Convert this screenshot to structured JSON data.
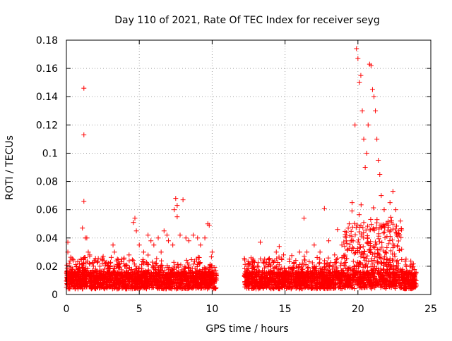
{
  "chart_data": {
    "type": "scatter",
    "title": "Day 110 of 2021, Rate Of TEC Index for receiver seyg",
    "xlabel": "GPS time / hours",
    "ylabel": "ROTI / TECUs",
    "xlim": [
      0,
      25
    ],
    "ylim": [
      0,
      0.18
    ],
    "xticks": [
      "0",
      "5",
      "10",
      "15",
      "20",
      "25"
    ],
    "yticks": [
      "0",
      "0.02",
      "0.04",
      "0.06",
      "0.08",
      "0.1",
      "0.12",
      "0.14",
      "0.16",
      "0.18"
    ],
    "grid": true,
    "legend": "none",
    "series": [
      {
        "color": "#ff0000",
        "marker": "plus",
        "points": [
          [
            0.1,
            0.037
          ],
          [
            0.1,
            0.03
          ],
          [
            0.2,
            0.022
          ],
          [
            0.3,
            0.018
          ],
          [
            0.5,
            0.015
          ],
          [
            0.7,
            0.02
          ],
          [
            0.9,
            0.022
          ],
          [
            1.0,
            0.025
          ],
          [
            1.1,
            0.047
          ],
          [
            1.2,
            0.146
          ],
          [
            1.2,
            0.113
          ],
          [
            1.2,
            0.066
          ],
          [
            1.3,
            0.04
          ],
          [
            1.4,
            0.04
          ],
          [
            1.5,
            0.03
          ],
          [
            1.6,
            0.028
          ],
          [
            1.8,
            0.022
          ],
          [
            2.0,
            0.018
          ],
          [
            2.3,
            0.02
          ],
          [
            2.6,
            0.018
          ],
          [
            3.0,
            0.022
          ],
          [
            3.2,
            0.035
          ],
          [
            3.3,
            0.03
          ],
          [
            3.5,
            0.025
          ],
          [
            3.8,
            0.025
          ],
          [
            4.0,
            0.02
          ],
          [
            4.3,
            0.028
          ],
          [
            4.6,
            0.051
          ],
          [
            4.7,
            0.054
          ],
          [
            4.8,
            0.045
          ],
          [
            5.0,
            0.035
          ],
          [
            5.3,
            0.03
          ],
          [
            5.6,
            0.042
          ],
          [
            5.8,
            0.038
          ],
          [
            6.0,
            0.035
          ],
          [
            6.3,
            0.04
          ],
          [
            6.5,
            0.03
          ],
          [
            6.7,
            0.045
          ],
          [
            6.9,
            0.042
          ],
          [
            7.0,
            0.038
          ],
          [
            7.3,
            0.035
          ],
          [
            7.4,
            0.06
          ],
          [
            7.5,
            0.068
          ],
          [
            7.6,
            0.063
          ],
          [
            7.6,
            0.055
          ],
          [
            7.8,
            0.042
          ],
          [
            8.0,
            0.067
          ],
          [
            8.2,
            0.04
          ],
          [
            8.4,
            0.038
          ],
          [
            8.7,
            0.042
          ],
          [
            9.0,
            0.04
          ],
          [
            9.2,
            0.035
          ],
          [
            9.5,
            0.04
          ],
          [
            9.7,
            0.05
          ],
          [
            9.8,
            0.049
          ],
          [
            10.0,
            0.03
          ],
          [
            12.4,
            0.02
          ],
          [
            12.8,
            0.025
          ],
          [
            13.3,
            0.037
          ],
          [
            13.6,
            0.025
          ],
          [
            14.0,
            0.02
          ],
          [
            14.4,
            0.03
          ],
          [
            14.6,
            0.034
          ],
          [
            14.9,
            0.028
          ],
          [
            15.3,
            0.025
          ],
          [
            15.6,
            0.022
          ],
          [
            16.0,
            0.03
          ],
          [
            16.3,
            0.054
          ],
          [
            16.5,
            0.03
          ],
          [
            17.0,
            0.035
          ],
          [
            17.4,
            0.03
          ],
          [
            17.7,
            0.061
          ],
          [
            18.0,
            0.038
          ],
          [
            18.4,
            0.028
          ],
          [
            18.6,
            0.046
          ],
          [
            18.9,
            0.035
          ],
          [
            19.2,
            0.038
          ],
          [
            19.4,
            0.05
          ],
          [
            19.6,
            0.065
          ],
          [
            19.8,
            0.12
          ],
          [
            19.9,
            0.174
          ],
          [
            20.0,
            0.167
          ],
          [
            20.1,
            0.15
          ],
          [
            20.2,
            0.155
          ],
          [
            20.3,
            0.13
          ],
          [
            20.4,
            0.11
          ],
          [
            20.5,
            0.09
          ],
          [
            20.6,
            0.1
          ],
          [
            20.7,
            0.12
          ],
          [
            20.8,
            0.163
          ],
          [
            20.9,
            0.162
          ],
          [
            21.0,
            0.145
          ],
          [
            21.1,
            0.14
          ],
          [
            21.2,
            0.13
          ],
          [
            21.3,
            0.11
          ],
          [
            21.4,
            0.095
          ],
          [
            21.5,
            0.085
          ],
          [
            21.6,
            0.07
          ],
          [
            21.8,
            0.06
          ],
          [
            22.0,
            0.05
          ],
          [
            22.2,
            0.065
          ],
          [
            22.4,
            0.073
          ],
          [
            22.6,
            0.06
          ],
          [
            22.8,
            0.045
          ],
          [
            23.0,
            0.032
          ],
          [
            23.3,
            0.025
          ],
          [
            23.6,
            0.02
          ],
          [
            23.9,
            0.012
          ]
        ]
      }
    ],
    "segments": [
      [
        0.0,
        10.3
      ],
      [
        12.2,
        24.0
      ]
    ]
  }
}
